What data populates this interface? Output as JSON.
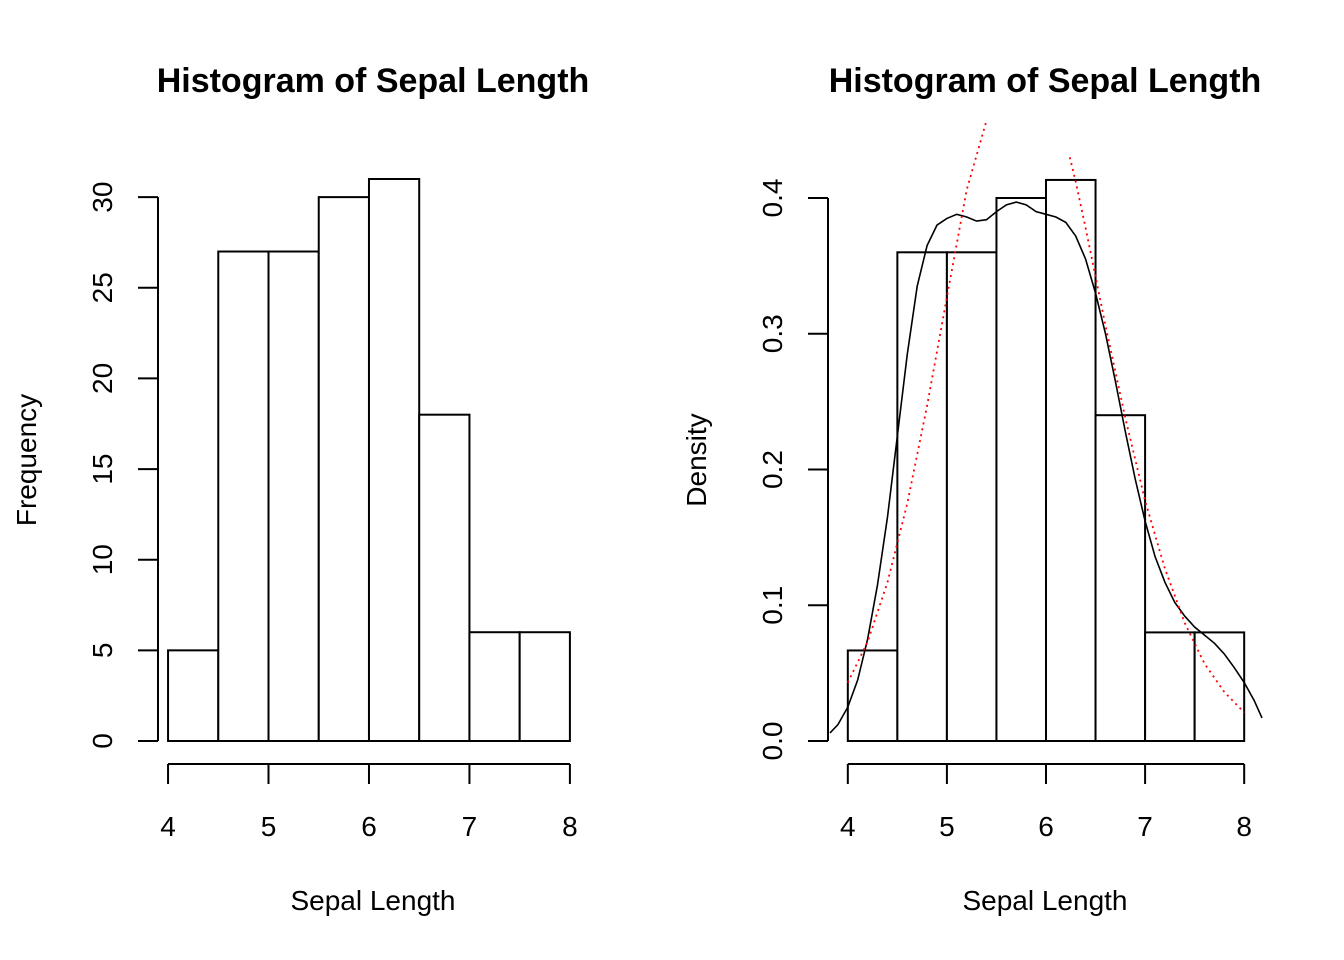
{
  "chart_data": [
    {
      "type": "bar",
      "title": "Histogram of Sepal Length",
      "xlabel": "Sepal Length",
      "ylabel": "Frequency",
      "bins": [
        {
          "start": 4.0,
          "end": 4.5,
          "value": 5
        },
        {
          "start": 4.5,
          "end": 5.0,
          "value": 27
        },
        {
          "start": 5.0,
          "end": 5.5,
          "value": 27
        },
        {
          "start": 5.5,
          "end": 6.0,
          "value": 30
        },
        {
          "start": 6.0,
          "end": 6.5,
          "value": 31
        },
        {
          "start": 6.5,
          "end": 7.0,
          "value": 18
        },
        {
          "start": 7.0,
          "end": 7.5,
          "value": 6
        },
        {
          "start": 7.5,
          "end": 8.0,
          "value": 6
        }
      ],
      "xlim": [
        3.9,
        8.2
      ],
      "ylim": [
        0,
        31
      ],
      "x_ticks": [
        "4",
        "5",
        "6",
        "7",
        "8"
      ],
      "y_ticks": [
        "0",
        "5",
        "10",
        "15",
        "20",
        "25",
        "30"
      ]
    },
    {
      "type": "bar",
      "title": "Histogram of Sepal Length",
      "xlabel": "Sepal Length",
      "ylabel": "Density",
      "bins": [
        {
          "start": 4.0,
          "end": 4.5,
          "value": 0.0667
        },
        {
          "start": 4.5,
          "end": 5.0,
          "value": 0.36
        },
        {
          "start": 5.0,
          "end": 5.5,
          "value": 0.36
        },
        {
          "start": 5.5,
          "end": 6.0,
          "value": 0.4
        },
        {
          "start": 6.0,
          "end": 6.5,
          "value": 0.4133
        },
        {
          "start": 6.5,
          "end": 7.0,
          "value": 0.24
        },
        {
          "start": 7.0,
          "end": 7.5,
          "value": 0.08
        },
        {
          "start": 7.5,
          "end": 8.0,
          "value": 0.08
        }
      ],
      "xlim": [
        3.8,
        8.2
      ],
      "ylim": [
        0,
        0.4
      ],
      "x_ticks": [
        "4",
        "5",
        "6",
        "7",
        "8"
      ],
      "y_ticks": [
        "0.0",
        "0.1",
        "0.2",
        "0.3",
        "0.4"
      ],
      "overlays": [
        {
          "type": "line",
          "style": "solid",
          "color": "#000000",
          "x": [
            3.82,
            3.9,
            4.0,
            4.1,
            4.2,
            4.3,
            4.4,
            4.5,
            4.6,
            4.7,
            4.8,
            4.9,
            5.0,
            5.1,
            5.2,
            5.3,
            5.4,
            5.5,
            5.6,
            5.7,
            5.8,
            5.9,
            6.0,
            6.1,
            6.2,
            6.3,
            6.4,
            6.5,
            6.6,
            6.7,
            6.8,
            6.9,
            7.0,
            7.1,
            7.2,
            7.3,
            7.4,
            7.5,
            7.6,
            7.7,
            7.8,
            7.9,
            8.0,
            8.1,
            8.18
          ],
          "y": [
            0.006,
            0.012,
            0.025,
            0.045,
            0.075,
            0.115,
            0.165,
            0.225,
            0.285,
            0.335,
            0.365,
            0.38,
            0.385,
            0.388,
            0.386,
            0.383,
            0.384,
            0.39,
            0.395,
            0.397,
            0.395,
            0.39,
            0.388,
            0.386,
            0.382,
            0.372,
            0.355,
            0.33,
            0.3,
            0.265,
            0.228,
            0.193,
            0.162,
            0.136,
            0.117,
            0.102,
            0.092,
            0.084,
            0.078,
            0.072,
            0.064,
            0.054,
            0.043,
            0.03,
            0.017
          ]
        },
        {
          "type": "line",
          "style": "dotted",
          "color": "#ff0000",
          "x": [
            4.0,
            4.2,
            4.4,
            4.6,
            4.8,
            5.0,
            5.2,
            5.4,
            5.5,
            6.24,
            6.3,
            6.4,
            6.6,
            6.8,
            7.0,
            7.2,
            7.4,
            7.6,
            7.8,
            8.0
          ],
          "y": [
            0.043,
            0.073,
            0.117,
            0.175,
            0.247,
            0.327,
            0.406,
            0.457,
            null,
            0.43,
            0.412,
            0.378,
            0.306,
            0.238,
            0.177,
            0.127,
            0.087,
            0.057,
            0.036,
            0.021
          ]
        }
      ]
    }
  ]
}
